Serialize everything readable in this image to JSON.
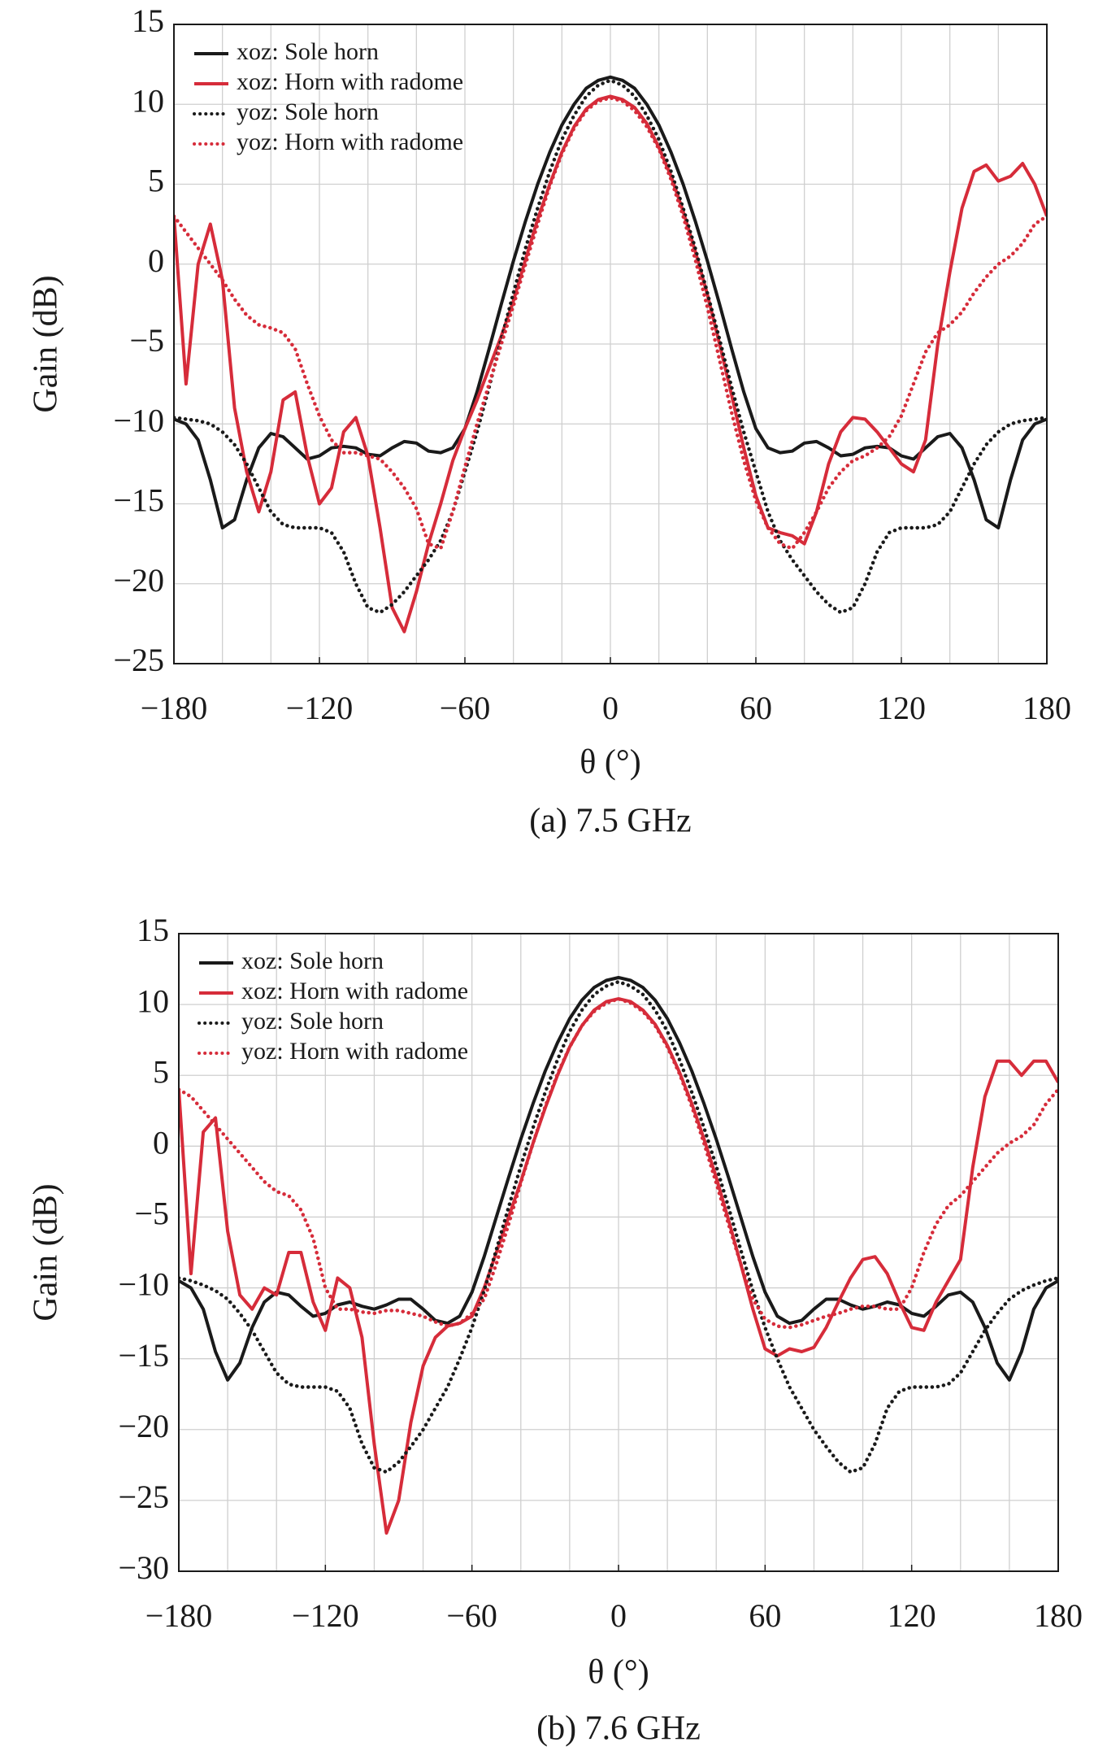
{
  "chart_data": [
    {
      "type": "line",
      "title": "(a) 7.5 GHz",
      "xlabel": "θ (°)",
      "ylabel": "Gain (dB)",
      "x": [
        -180,
        -175,
        -170,
        -165,
        -160,
        -155,
        -150,
        -145,
        -140,
        -135,
        -130,
        -125,
        -120,
        -115,
        -110,
        -105,
        -100,
        -95,
        -90,
        -85,
        -80,
        -75,
        -70,
        -65,
        -60,
        -55,
        -50,
        -45,
        -40,
        -35,
        -30,
        -25,
        -20,
        -15,
        -10,
        -5,
        0,
        5,
        10,
        15,
        20,
        25,
        30,
        35,
        40,
        45,
        50,
        55,
        60,
        65,
        70,
        75,
        80,
        85,
        90,
        95,
        100,
        105,
        110,
        115,
        120,
        125,
        130,
        135,
        140,
        145,
        150,
        155,
        160,
        165,
        170,
        175,
        180
      ],
      "xlim": [
        -180,
        180
      ],
      "xticks": [
        {
          "value": -180,
          "label": "−180"
        },
        {
          "value": -120,
          "label": "−120"
        },
        {
          "value": -60,
          "label": "−60"
        },
        0,
        60,
        120,
        180
      ],
      "xminor": [
        -180,
        -160,
        -140,
        -120,
        -100,
        -80,
        -60,
        -40,
        -20,
        0,
        20,
        40,
        60,
        80,
        100,
        120,
        140,
        160,
        180
      ],
      "ylim": [
        -25,
        15
      ],
      "yticks": [
        15,
        10,
        5,
        0,
        {
          "value": -5,
          "label": "−5"
        },
        {
          "value": -10,
          "label": "−10"
        },
        {
          "value": -15,
          "label": "−15"
        },
        {
          "value": -20,
          "label": "−20"
        },
        {
          "value": -25,
          "label": "−25"
        }
      ],
      "grid": true,
      "legend": "upper left",
      "series": [
        {
          "name": "xoz: Sole horn",
          "color": "#1a1a1a",
          "dash": "solid",
          "values": [
            -9.7,
            -10,
            -11,
            -13.5,
            -16.5,
            -16,
            -13.5,
            -11.5,
            -10.6,
            -10.8,
            -11.5,
            -12.2,
            -12,
            -11.5,
            -11.4,
            -11.5,
            -11.9,
            -12,
            -11.5,
            -11.1,
            -11.2,
            -11.7,
            -11.8,
            -11.5,
            -10.3,
            -8,
            -5.3,
            -2.5,
            0.2,
            2.7,
            5,
            7,
            8.7,
            10,
            11,
            11.5,
            11.7,
            11.5,
            11,
            10,
            8.7,
            7,
            5,
            2.7,
            0.2,
            -2.5,
            -5.3,
            -8,
            -10.3,
            -11.5,
            -11.8,
            -11.7,
            -11.2,
            -11.1,
            -11.5,
            -12,
            -11.9,
            -11.5,
            -11.4,
            -11.5,
            -12,
            -12.2,
            -11.5,
            -10.8,
            -10.6,
            -11.5,
            -13.5,
            -16,
            -16.5,
            -13.5,
            -11,
            -10,
            -9.7
          ]
        },
        {
          "name": "xoz: Horn with radome",
          "color": "#d62c3a",
          "dash": "solid",
          "values": [
            3,
            -7.5,
            0,
            2.5,
            -1,
            -9,
            -13,
            -15.5,
            -13,
            -8.5,
            -8,
            -12,
            -15,
            -14,
            -10.5,
            -9.6,
            -12,
            -16.5,
            -21.5,
            -23,
            -20.5,
            -17.5,
            -15,
            -12.3,
            -10.3,
            -8.5,
            -6.5,
            -4.5,
            -2.3,
            0.3,
            2.8,
            5,
            7,
            8.6,
            9.7,
            10.3,
            10.5,
            10.3,
            9.8,
            8.8,
            7.3,
            5.5,
            3.3,
            0.8,
            -1.9,
            -5,
            -8.2,
            -11.5,
            -14.5,
            -16.5,
            -16.8,
            -17,
            -17.5,
            -15.5,
            -12.5,
            -10.5,
            -9.6,
            -9.7,
            -10.5,
            -11.5,
            -12.5,
            -13,
            -11,
            -5,
            -0.5,
            3.5,
            5.8,
            6.2,
            5.2,
            5.5,
            6.3,
            5,
            3
          ]
        },
        {
          "name": "yoz: Sole horn",
          "color": "#1a1a1a",
          "dash": "dotted",
          "values": [
            -9.6,
            -9.7,
            -9.8,
            -10,
            -10.5,
            -11.3,
            -12.5,
            -14,
            -15.5,
            -16.3,
            -16.5,
            -16.5,
            -16.5,
            -16.8,
            -18,
            -20,
            -21.5,
            -21.8,
            -21.3,
            -20.5,
            -19.5,
            -18.5,
            -17.3,
            -15.5,
            -13,
            -10.5,
            -7.7,
            -4.7,
            -1.8,
            1,
            3.5,
            5.8,
            7.8,
            9.3,
            10.5,
            11.2,
            11.5,
            11.2,
            10.5,
            9.3,
            7.8,
            5.8,
            3.5,
            1,
            -1.8,
            -4.7,
            -7.7,
            -10.5,
            -13,
            -15.5,
            -17.3,
            -18.5,
            -19.5,
            -20.5,
            -21.3,
            -21.8,
            -21.5,
            -20,
            -18,
            -16.8,
            -16.5,
            -16.5,
            -16.5,
            -16.3,
            -15.5,
            -14,
            -12.5,
            -11.3,
            -10.5,
            -10,
            -9.8,
            -9.7,
            -9.6
          ]
        },
        {
          "name": "yoz: Horn with radome",
          "color": "#d62c3a",
          "dash": "dotted",
          "values": [
            3,
            2,
            1,
            0,
            -1,
            -2.2,
            -3.2,
            -3.8,
            -4,
            -4.3,
            -5.3,
            -7.5,
            -9.5,
            -11,
            -11.8,
            -11.8,
            -12,
            -12.2,
            -13,
            -14,
            -15.3,
            -17.5,
            -17.8,
            -15.5,
            -12.7,
            -10,
            -7.5,
            -5,
            -2.6,
            0,
            2.5,
            4.9,
            6.9,
            8.5,
            9.6,
            10.2,
            10.4,
            10.2,
            9.6,
            8.6,
            7.2,
            5.3,
            3,
            0.3,
            -2.7,
            -6,
            -9.3,
            -12.3,
            -14.8,
            -16.5,
            -17.5,
            -17.8,
            -16.8,
            -15.5,
            -14,
            -13,
            -12.3,
            -12,
            -11.5,
            -10.8,
            -9.5,
            -7.5,
            -5.5,
            -4.3,
            -3.8,
            -3,
            -1.8,
            -0.8,
            0,
            0.5,
            1.3,
            2.5,
            3
          ]
        }
      ]
    },
    {
      "type": "line",
      "title": "(b) 7.6 GHz",
      "xlabel": "θ (°)",
      "ylabel": "Gain (dB)",
      "x": [
        -180,
        -175,
        -170,
        -165,
        -160,
        -155,
        -150,
        -145,
        -140,
        -135,
        -130,
        -125,
        -120,
        -115,
        -110,
        -105,
        -100,
        -95,
        -90,
        -85,
        -80,
        -75,
        -70,
        -65,
        -60,
        -55,
        -50,
        -45,
        -40,
        -35,
        -30,
        -25,
        -20,
        -15,
        -10,
        -5,
        0,
        5,
        10,
        15,
        20,
        25,
        30,
        35,
        40,
        45,
        50,
        55,
        60,
        65,
        70,
        75,
        80,
        85,
        90,
        95,
        100,
        105,
        110,
        115,
        120,
        125,
        130,
        135,
        140,
        145,
        150,
        155,
        160,
        165,
        170,
        175,
        180
      ],
      "xlim": [
        -180,
        180
      ],
      "xticks": [
        {
          "value": -180,
          "label": "−180"
        },
        {
          "value": -120,
          "label": "−120"
        },
        {
          "value": -60,
          "label": "−60"
        },
        0,
        60,
        120,
        180
      ],
      "xminor": [
        -180,
        -160,
        -140,
        -120,
        -100,
        -80,
        -60,
        -40,
        -20,
        0,
        20,
        40,
        60,
        80,
        100,
        120,
        140,
        160,
        180
      ],
      "ylim": [
        -30,
        15
      ],
      "yticks": [
        15,
        10,
        5,
        0,
        {
          "value": -5,
          "label": "−5"
        },
        {
          "value": -10,
          "label": "−10"
        },
        {
          "value": -15,
          "label": "−15"
        },
        {
          "value": -20,
          "label": "−20"
        },
        {
          "value": -25,
          "label": "−25"
        },
        {
          "value": -30,
          "label": "−30"
        }
      ],
      "grid": true,
      "legend": "upper left",
      "series": [
        {
          "name": "xoz: Sole horn",
          "color": "#1a1a1a",
          "dash": "solid",
          "values": [
            -9.5,
            -10,
            -11.5,
            -14.5,
            -16.5,
            -15.3,
            -12.8,
            -11,
            -10.3,
            -10.5,
            -11.3,
            -12,
            -11.8,
            -11.2,
            -11,
            -11.3,
            -11.5,
            -11.2,
            -10.8,
            -10.8,
            -11.5,
            -12.3,
            -12.5,
            -12,
            -10.3,
            -7.8,
            -5,
            -2.2,
            0.5,
            3,
            5.3,
            7.3,
            9,
            10.3,
            11.2,
            11.7,
            11.9,
            11.7,
            11.2,
            10.3,
            9,
            7.3,
            5.3,
            3,
            0.5,
            -2.2,
            -5,
            -7.8,
            -10.3,
            -12,
            -12.5,
            -12.3,
            -11.5,
            -10.8,
            -10.8,
            -11.2,
            -11.5,
            -11.3,
            -11,
            -11.2,
            -11.8,
            -12,
            -11.3,
            -10.5,
            -10.3,
            -11,
            -12.8,
            -15.3,
            -16.5,
            -14.5,
            -11.5,
            -10,
            -9.5
          ]
        },
        {
          "name": "xoz: Horn with radome",
          "color": "#d62c3a",
          "dash": "solid",
          "values": [
            4,
            -9,
            1,
            2,
            -6,
            -10.5,
            -11.5,
            -10,
            -10.5,
            -7.5,
            -7.5,
            -11,
            -13,
            -9.3,
            -10,
            -13.5,
            -21,
            -27.3,
            -25,
            -19.5,
            -15.5,
            -13.5,
            -12.7,
            -12.5,
            -12,
            -10,
            -7.5,
            -5,
            -2.5,
            0.2,
            2.7,
            5,
            7,
            8.5,
            9.6,
            10.2,
            10.4,
            10.2,
            9.6,
            8.6,
            7.1,
            5.2,
            3,
            0.5,
            -2.2,
            -5.2,
            -8.3,
            -11.5,
            -14.3,
            -14.8,
            -14.3,
            -14.5,
            -14.2,
            -12.8,
            -11,
            -9.3,
            -8,
            -7.8,
            -9,
            -11,
            -12.8,
            -13,
            -11,
            -9.5,
            -8,
            -1.5,
            3.5,
            6,
            6,
            5,
            6,
            6,
            4.5
          ]
        },
        {
          "name": "yoz: Sole horn",
          "color": "#1a1a1a",
          "dash": "dotted",
          "values": [
            -9.3,
            -9.5,
            -9.8,
            -10.2,
            -10.8,
            -11.8,
            -13,
            -14.5,
            -16,
            -16.8,
            -17,
            -17,
            -17,
            -17.3,
            -18.5,
            -21,
            -22.7,
            -23,
            -22.3,
            -21.2,
            -20,
            -18.5,
            -17,
            -15,
            -12.8,
            -10.2,
            -7.3,
            -4.3,
            -1.4,
            1.3,
            3.8,
            6.1,
            8.1,
            9.6,
            10.7,
            11.3,
            11.6,
            11.3,
            10.7,
            9.6,
            8.1,
            6.1,
            3.8,
            1.3,
            -1.4,
            -4.3,
            -7.3,
            -10.2,
            -12.8,
            -15,
            -17,
            -18.5,
            -20,
            -21.2,
            -22.3,
            -23,
            -22.7,
            -21,
            -18.5,
            -17.3,
            -17,
            -17,
            -17,
            -16.8,
            -16,
            -14.5,
            -13,
            -11.8,
            -10.8,
            -10.2,
            -9.8,
            -9.5,
            -9.3
          ]
        },
        {
          "name": "yoz: Horn with radome",
          "color": "#d62c3a",
          "dash": "dotted",
          "values": [
            4,
            3.5,
            2.5,
            1.5,
            0.5,
            -0.5,
            -1.5,
            -2.5,
            -3.2,
            -3.5,
            -4.5,
            -6.5,
            -10,
            -11.5,
            -11.5,
            -11.7,
            -11.8,
            -11.6,
            -11.6,
            -11.8,
            -12,
            -12.4,
            -12.7,
            -12.5,
            -11.8,
            -10.8,
            -8.3,
            -5.5,
            -2.6,
            0.2,
            2.8,
            5.1,
            7,
            8.5,
            9.5,
            10.1,
            10.4,
            10.1,
            9.5,
            8.5,
            7,
            5.1,
            2.8,
            0.2,
            -2.6,
            -5.5,
            -8.3,
            -10.8,
            -12.2,
            -12.7,
            -12.8,
            -12.6,
            -12.3,
            -12,
            -11.8,
            -11.5,
            -11.3,
            -11.3,
            -11.5,
            -11.5,
            -10,
            -7.5,
            -5.5,
            -4.2,
            -3.5,
            -2.5,
            -1.5,
            -0.5,
            0.2,
            0.7,
            1.5,
            3,
            4
          ]
        }
      ]
    }
  ]
}
